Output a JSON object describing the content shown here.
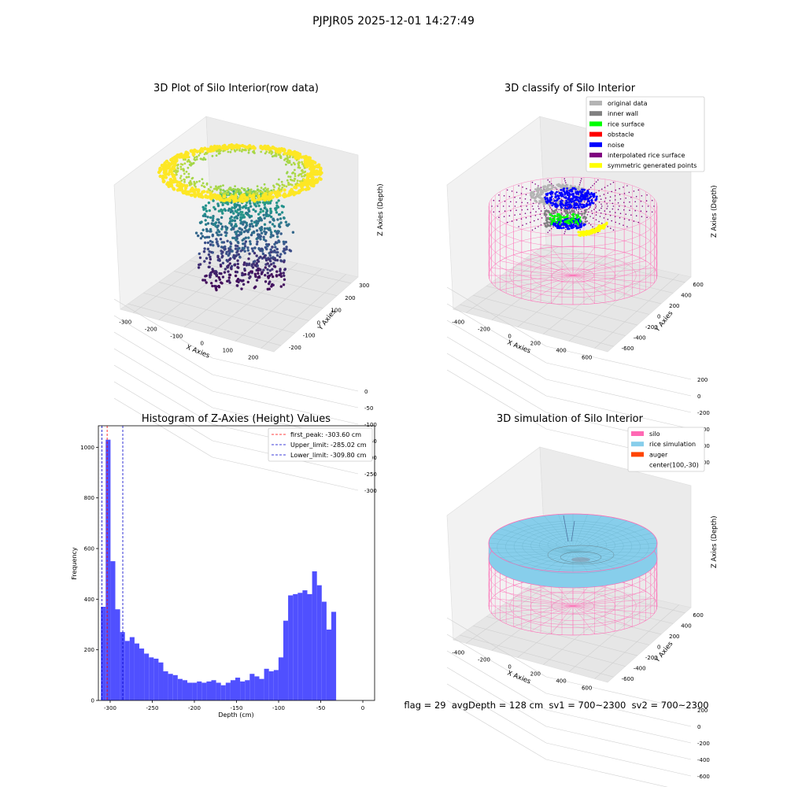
{
  "figure": {
    "suptitle": "PJPJR05 2025-12-01 14:27:49",
    "footer": "flag = 29  avgDepth = 128 cm  sv1 = 700~2300  sv2 = 700~2300"
  },
  "colors": {
    "hist_bar": "#5050ff",
    "first_peak_line": "#ff0000",
    "limit_line": "#0000cc",
    "silo_mesh": "#ff69b4",
    "rice_fill": "#87ceeb",
    "auger": "#ff4500",
    "viridis": [
      "#440154",
      "#3b528b",
      "#21918c",
      "#5ec962",
      "#fde725"
    ]
  },
  "chart_data": [
    {
      "type": "scatter",
      "panel": "top-left",
      "title": "3D Plot of Silo Interior(row data)",
      "xlabel": "X Axies",
      "ylabel": "Y Axies",
      "zlabel": "Z Axies (Depth)",
      "x_ticks": [
        "-300",
        "-200",
        "-100",
        "0",
        "100",
        "200"
      ],
      "y_ticks": [
        "-200",
        "-100",
        "0",
        "100",
        "200",
        "300"
      ],
      "z_ticks": [
        "0",
        "-50",
        "-100",
        "-150",
        "-200",
        "-250",
        "-300"
      ],
      "colormap": "viridis"
    },
    {
      "type": "scatter",
      "panel": "top-right",
      "title": "3D classify of Silo Interior",
      "xlabel": "X Axies",
      "ylabel": "Y Axies",
      "zlabel": "Z Axies (Depth)",
      "x_ticks": [
        "-400",
        "-200",
        "0",
        "200",
        "400",
        "600"
      ],
      "y_ticks": [
        "-600",
        "-400",
        "-200",
        "0",
        "200",
        "400",
        "600"
      ],
      "z_ticks": [
        "200",
        "0",
        "-200",
        "-400",
        "-600",
        "-800"
      ],
      "legend_position": "upper-right",
      "legend": [
        {
          "label": "original data",
          "color": "#b4b4b4"
        },
        {
          "label": "inner wall",
          "color": "#808080"
        },
        {
          "label": "rice surface",
          "color": "#00ff00"
        },
        {
          "label": "obstacle",
          "color": "#ff0000"
        },
        {
          "label": "noise",
          "color": "#0000ff"
        },
        {
          "label": "interpolated rice surface",
          "color": "#800080"
        },
        {
          "label": "symmetric generated points",
          "color": "#ffff00"
        }
      ]
    },
    {
      "type": "bar",
      "panel": "bottom-left",
      "title": "Histogram of Z-Axies (Height) Values",
      "xlabel": "Depth (cm)",
      "ylabel": "Frequency",
      "xlim": [
        -314,
        14
      ],
      "ylim": [
        0,
        1085
      ],
      "x_ticks": [
        -300,
        -250,
        -200,
        -150,
        -100,
        -50,
        0
      ],
      "y_ticks": [
        0,
        200,
        400,
        600,
        800,
        1000
      ],
      "bin_start": -311,
      "bin_width": 5.7,
      "values": [
        370,
        1030,
        550,
        360,
        270,
        235,
        250,
        225,
        205,
        185,
        170,
        165,
        150,
        115,
        105,
        100,
        85,
        80,
        70,
        70,
        75,
        70,
        75,
        80,
        70,
        60,
        70,
        80,
        90,
        75,
        80,
        105,
        95,
        85,
        125,
        115,
        120,
        170,
        315,
        415,
        420,
        425,
        435,
        420,
        510,
        455,
        390,
        280,
        350
      ],
      "vlines": [
        {
          "label": "first_peak: -303.60 cm",
          "x": -303.6,
          "color": "#ff0000"
        },
        {
          "label": "Upper_limit: -285.02 cm",
          "x": -285.02,
          "color": "#0000cc"
        },
        {
          "label": "Lower_limit: -309.80 cm",
          "x": -309.8,
          "color": "#0000cc"
        }
      ],
      "legend_position": "upper-right"
    },
    {
      "type": "surface",
      "panel": "bottom-right",
      "title": "3D simulation of Silo Interior",
      "xlabel": "X Axies",
      "ylabel": "Y Axies",
      "zlabel": "Z Axies (Depth)",
      "x_ticks": [
        "-400",
        "-200",
        "0",
        "200",
        "400",
        "600"
      ],
      "y_ticks": [
        "-600",
        "-400",
        "-200",
        "0",
        "200",
        "400",
        "600"
      ],
      "z_ticks": [
        "200",
        "0",
        "-200",
        "-400",
        "-600",
        "-800"
      ],
      "legend_position": "upper-right",
      "legend": [
        {
          "label": "silo",
          "color": "#ff69b4"
        },
        {
          "label": "rice simulation",
          "color": "#87ceeb"
        },
        {
          "label": "auger",
          "color": "#ff4500"
        },
        {
          "label": "center(100,-30)",
          "color": ""
        }
      ]
    }
  ]
}
